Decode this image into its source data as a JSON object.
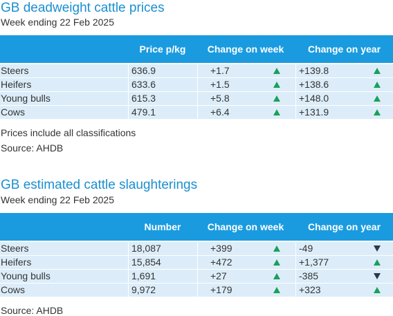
{
  "prices": {
    "title": "GB deadweight cattle prices",
    "subtitle": "Week ending 22 Feb 2025",
    "headers": {
      "value": "Price p/kg",
      "week": "Change on week",
      "year": "Change on year"
    },
    "rows": [
      {
        "label": "Steers",
        "value": "636.9",
        "week": "+1.7",
        "week_dir": "up",
        "year": "+139.8",
        "year_dir": "up"
      },
      {
        "label": "Heifers",
        "value": "633.6",
        "week": "+1.5",
        "week_dir": "up",
        "year": "+138.6",
        "year_dir": "up"
      },
      {
        "label": "Young bulls",
        "value": "615.3",
        "week": "+5.8",
        "week_dir": "up",
        "year": "+148.0",
        "year_dir": "up"
      },
      {
        "label": "Cows",
        "value": "479.1",
        "week": "+6.4",
        "week_dir": "up",
        "year": "+131.9",
        "year_dir": "up"
      }
    ],
    "note": "Prices include all classifications",
    "source": "Source: AHDB"
  },
  "slaughterings": {
    "title": "GB estimated cattle slaughterings",
    "subtitle": "Week ending 22 Feb 2025",
    "headers": {
      "value": "Number",
      "week": "Change on week",
      "year": "Change on year"
    },
    "rows": [
      {
        "label": "Steers",
        "value": "18,087",
        "week": "+399",
        "week_dir": "up",
        "year": "-49",
        "year_dir": "down"
      },
      {
        "label": "Heifers",
        "value": "15,854",
        "week": "+472",
        "week_dir": "up",
        "year": "+1,377",
        "year_dir": "up"
      },
      {
        "label": "Young bulls",
        "value": "1,691",
        "week": "+27",
        "week_dir": "up",
        "year": "-385",
        "year_dir": "down"
      },
      {
        "label": "Cows",
        "value": "9,972",
        "week": "+179",
        "week_dir": "up",
        "year": "+323",
        "year_dir": "up"
      }
    ],
    "source": "Source: AHDB"
  },
  "colors": {
    "up": "#1aa05a",
    "down": "#2b3a4a",
    "header": "#1a9be0",
    "row": "#dcedf9",
    "title": "#1a8fd0"
  }
}
